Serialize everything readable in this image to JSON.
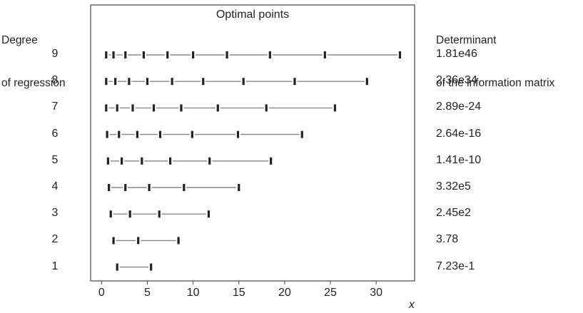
{
  "chart_data": {
    "type": "scatter",
    "title": "Optimal points",
    "xlabel": "x",
    "xlim": [
      -1.2,
      34.2
    ],
    "xticks": [
      0,
      5,
      10,
      15,
      20,
      25,
      30
    ],
    "grid": false,
    "left_header": [
      "Degree",
      "of regression"
    ],
    "right_header": [
      "Determinant",
      "of the information matrix"
    ],
    "rows": [
      {
        "degree": "9",
        "determinant": "1.81e46",
        "points": [
          0.5,
          1.3,
          2.6,
          4.6,
          7.2,
          10.0,
          13.7,
          18.4,
          24.4,
          32.6
        ]
      },
      {
        "degree": "8",
        "determinant": "2.36e34",
        "points": [
          0.5,
          1.5,
          3.0,
          5.0,
          7.7,
          11.1,
          15.5,
          21.1,
          29.0
        ]
      },
      {
        "degree": "7",
        "determinant": "2.89e-24",
        "points": [
          0.5,
          1.7,
          3.4,
          5.7,
          8.7,
          12.7,
          18.0,
          25.5
        ]
      },
      {
        "degree": "6",
        "determinant": "2.64e-16",
        "points": [
          0.6,
          1.9,
          3.9,
          6.4,
          9.9,
          14.9,
          21.9
        ]
      },
      {
        "degree": "5",
        "determinant": "1.41e-10",
        "points": [
          0.7,
          2.2,
          4.4,
          7.5,
          11.8,
          18.5
        ]
      },
      {
        "degree": "4",
        "determinant": "3.32e5",
        "points": [
          0.8,
          2.6,
          5.2,
          9.0,
          15.0
        ]
      },
      {
        "degree": "3",
        "determinant": "2.45e2",
        "points": [
          1.0,
          3.1,
          6.3,
          11.7
        ]
      },
      {
        "degree": "2",
        "determinant": "3.78",
        "points": [
          1.3,
          4.0,
          8.4
        ]
      },
      {
        "degree": "1",
        "determinant": "7.23e-1",
        "points": [
          1.7,
          5.4
        ]
      }
    ]
  }
}
